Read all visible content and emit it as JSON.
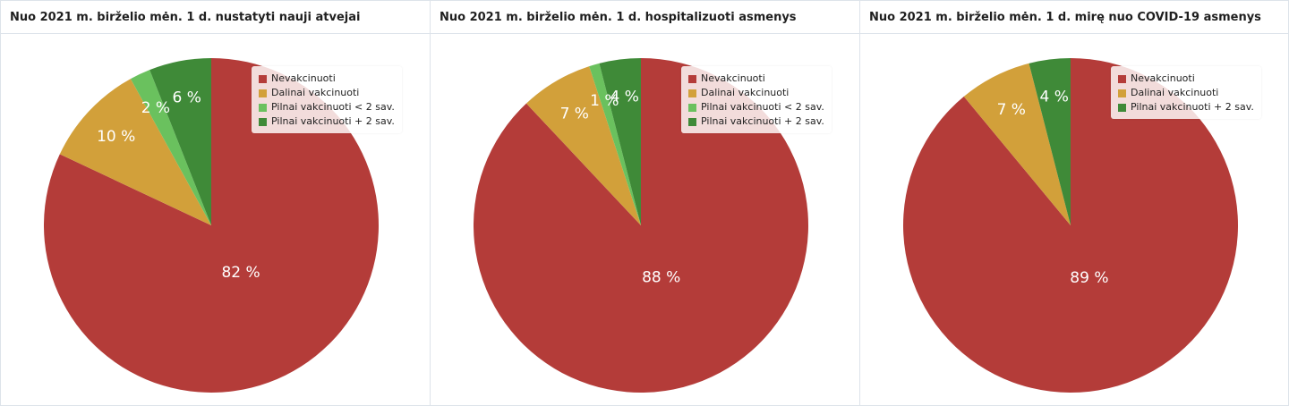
{
  "colors": {
    "Nevakcinuoti": "#b43c39",
    "Dalinai vakcinuoti": "#d2a03a",
    "Pilnai vakcinuoti < 2 sav.": "#6ac15e",
    "Pilnai vakcinuoti + 2 sav.": "#3f8a38"
  },
  "panels": [
    {
      "title": "Nuo 2021 m. birželio mėn. 1 d. nustatyti nauji atvejai",
      "legend": [
        "Nevakcinuoti",
        "Dalinai vakcinuoti",
        "Pilnai vakcinuoti < 2 sav.",
        "Pilnai vakcinuoti + 2 sav."
      ]
    },
    {
      "title": "Nuo 2021 m. birželio mėn. 1 d. hospitalizuoti asmenys",
      "legend": [
        "Nevakcinuoti",
        "Dalinai vakcinuoti",
        "Pilnai vakcinuoti < 2 sav.",
        "Pilnai vakcinuoti + 2 sav."
      ]
    },
    {
      "title": "Nuo 2021 m. birželio mėn. 1 d. mirę nuo COVID-19 asmenys",
      "legend": [
        "Nevakcinuoti",
        "Dalinai vakcinuoti",
        "Pilnai vakcinuoti + 2 sav."
      ]
    }
  ],
  "chart_data": [
    {
      "type": "pie",
      "title": "Nuo 2021 m. birželio mėn. 1 d. nustatyti nauji atvejai",
      "legend_position": "top-right",
      "slices": [
        {
          "name": "Nevakcinuoti",
          "value": 82,
          "label": "82 %"
        },
        {
          "name": "Dalinai vakcinuoti",
          "value": 10,
          "label": "10 %"
        },
        {
          "name": "Pilnai vakcinuoti < 2 sav.",
          "value": 2,
          "label": "2 %"
        },
        {
          "name": "Pilnai vakcinuoti + 2 sav.",
          "value": 6,
          "label": "6 %"
        }
      ]
    },
    {
      "type": "pie",
      "title": "Nuo 2021 m. birželio mėn. 1 d. hospitalizuoti asmenys",
      "legend_position": "top-right",
      "slices": [
        {
          "name": "Nevakcinuoti",
          "value": 88,
          "label": "88 %"
        },
        {
          "name": "Dalinai vakcinuoti",
          "value": 7,
          "label": "7 %"
        },
        {
          "name": "Pilnai vakcinuoti < 2 sav.",
          "value": 1,
          "label": "1 %"
        },
        {
          "name": "Pilnai vakcinuoti + 2 sav.",
          "value": 4,
          "label": "4 %"
        }
      ]
    },
    {
      "type": "pie",
      "title": "Nuo 2021 m. birželio mėn. 1 d. mirę nuo COVID-19 asmenys",
      "legend_position": "top-right",
      "slices": [
        {
          "name": "Nevakcinuoti",
          "value": 89,
          "label": "89 %"
        },
        {
          "name": "Dalinai vakcinuoti",
          "value": 7,
          "label": "7 %"
        },
        {
          "name": "Pilnai vakcinuoti + 2 sav.",
          "value": 4,
          "label": "4 %"
        }
      ]
    }
  ]
}
